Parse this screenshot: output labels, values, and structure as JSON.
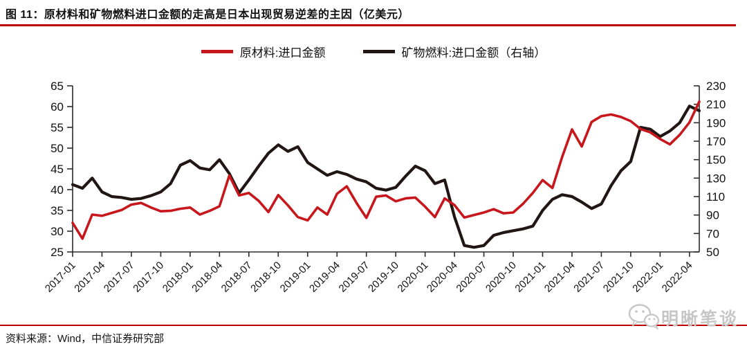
{
  "figure": {
    "title": "图 11：原材料和矿物燃料进口金额的走高是日本出现贸易逆差的主因（亿美元）",
    "source_note": "资料来源：Wind，中信证券研究部",
    "watermark_text": "明晰笔谈",
    "accent_red": "#c00000",
    "watermark_gray": "#c6c6c6"
  },
  "chart_data": {
    "type": "line",
    "title": "图 11：原材料和矿物燃料进口金额的走高是日本出现贸易逆差的主因（亿美元）",
    "x": [
      "2017-01",
      "2017-02",
      "2017-03",
      "2017-04",
      "2017-05",
      "2017-06",
      "2017-07",
      "2017-08",
      "2017-09",
      "2017-10",
      "2017-11",
      "2017-12",
      "2018-01",
      "2018-02",
      "2018-03",
      "2018-04",
      "2018-05",
      "2018-06",
      "2018-07",
      "2018-08",
      "2018-09",
      "2018-10",
      "2018-11",
      "2018-12",
      "2019-01",
      "2019-02",
      "2019-03",
      "2019-04",
      "2019-05",
      "2019-06",
      "2019-07",
      "2019-08",
      "2019-09",
      "2019-10",
      "2019-11",
      "2019-12",
      "2020-01",
      "2020-02",
      "2020-03",
      "2020-04",
      "2020-05",
      "2020-06",
      "2020-07",
      "2020-08",
      "2020-09",
      "2020-10",
      "2020-11",
      "2020-12",
      "2021-01",
      "2021-02",
      "2021-03",
      "2021-04",
      "2021-05",
      "2021-06",
      "2021-07",
      "2021-08",
      "2021-09",
      "2021-10",
      "2021-11",
      "2021-12",
      "2022-01",
      "2022-02",
      "2022-03",
      "2022-04",
      "2022-05"
    ],
    "x_tick_every": 3,
    "x_tick_labels": [
      "2017-01",
      "2017-04",
      "2017-07",
      "2017-10",
      "2018-01",
      "2018-04",
      "2018-07",
      "2018-10",
      "2019-01",
      "2019-04",
      "2019-07",
      "2019-10",
      "2020-01",
      "2020-04",
      "2020-07",
      "2020-10",
      "2021-01",
      "2021-04",
      "2021-07",
      "2021-10",
      "2022-01",
      "2022-04"
    ],
    "axes": {
      "left": {
        "min": 25,
        "max": 65,
        "step": 5,
        "ticks": [
          25,
          30,
          35,
          40,
          45,
          50,
          55,
          60,
          65
        ]
      },
      "right": {
        "min": 50,
        "max": 230,
        "step": 20,
        "ticks": [
          50,
          70,
          90,
          110,
          130,
          150,
          170,
          190,
          210,
          230
        ]
      }
    },
    "grid": false,
    "legend_position": "top-center",
    "series": [
      {
        "name": "原材料:进口金额",
        "axis": "left",
        "color": "#c8171c",
        "line_width": 3.6,
        "values": [
          32.0,
          28.2,
          34.0,
          33.7,
          34.4,
          35.1,
          36.4,
          36.8,
          35.7,
          34.8,
          34.9,
          35.4,
          35.7,
          34.0,
          34.9,
          36.0,
          43.4,
          38.6,
          39.2,
          37.3,
          34.6,
          38.7,
          36.2,
          33.4,
          32.6,
          35.7,
          34.0,
          39.0,
          40.8,
          36.8,
          33.2,
          38.3,
          38.6,
          37.2,
          37.9,
          38.1,
          35.9,
          33.4,
          37.9,
          36.3,
          33.3,
          33.9,
          34.5,
          35.3,
          34.3,
          34.5,
          36.6,
          39.2,
          42.3,
          40.4,
          47.9,
          54.5,
          50.4,
          56.3,
          57.7,
          58.1,
          57.5,
          56.5,
          54.6,
          53.8,
          52.2,
          50.9,
          53.2,
          56.2,
          61.2
        ]
      },
      {
        "name": "矿物燃料:进口金额（右轴）",
        "axis": "right",
        "color": "#211613",
        "line_width": 4.2,
        "values": [
          123,
          119,
          130,
          115,
          110,
          109,
          107,
          108,
          111,
          115,
          124,
          144,
          149,
          141,
          139,
          150,
          135,
          114,
          128,
          143,
          157,
          166,
          159,
          164,
          147,
          140,
          133,
          137,
          134,
          129,
          126,
          119,
          117,
          120,
          132,
          143,
          138,
          124,
          128,
          88,
          57,
          55,
          57,
          68,
          71,
          73,
          75,
          78,
          95,
          107,
          112,
          110,
          104,
          97,
          102,
          122,
          138,
          148,
          185,
          183,
          175,
          181,
          190,
          208,
          203
        ]
      }
    ]
  }
}
